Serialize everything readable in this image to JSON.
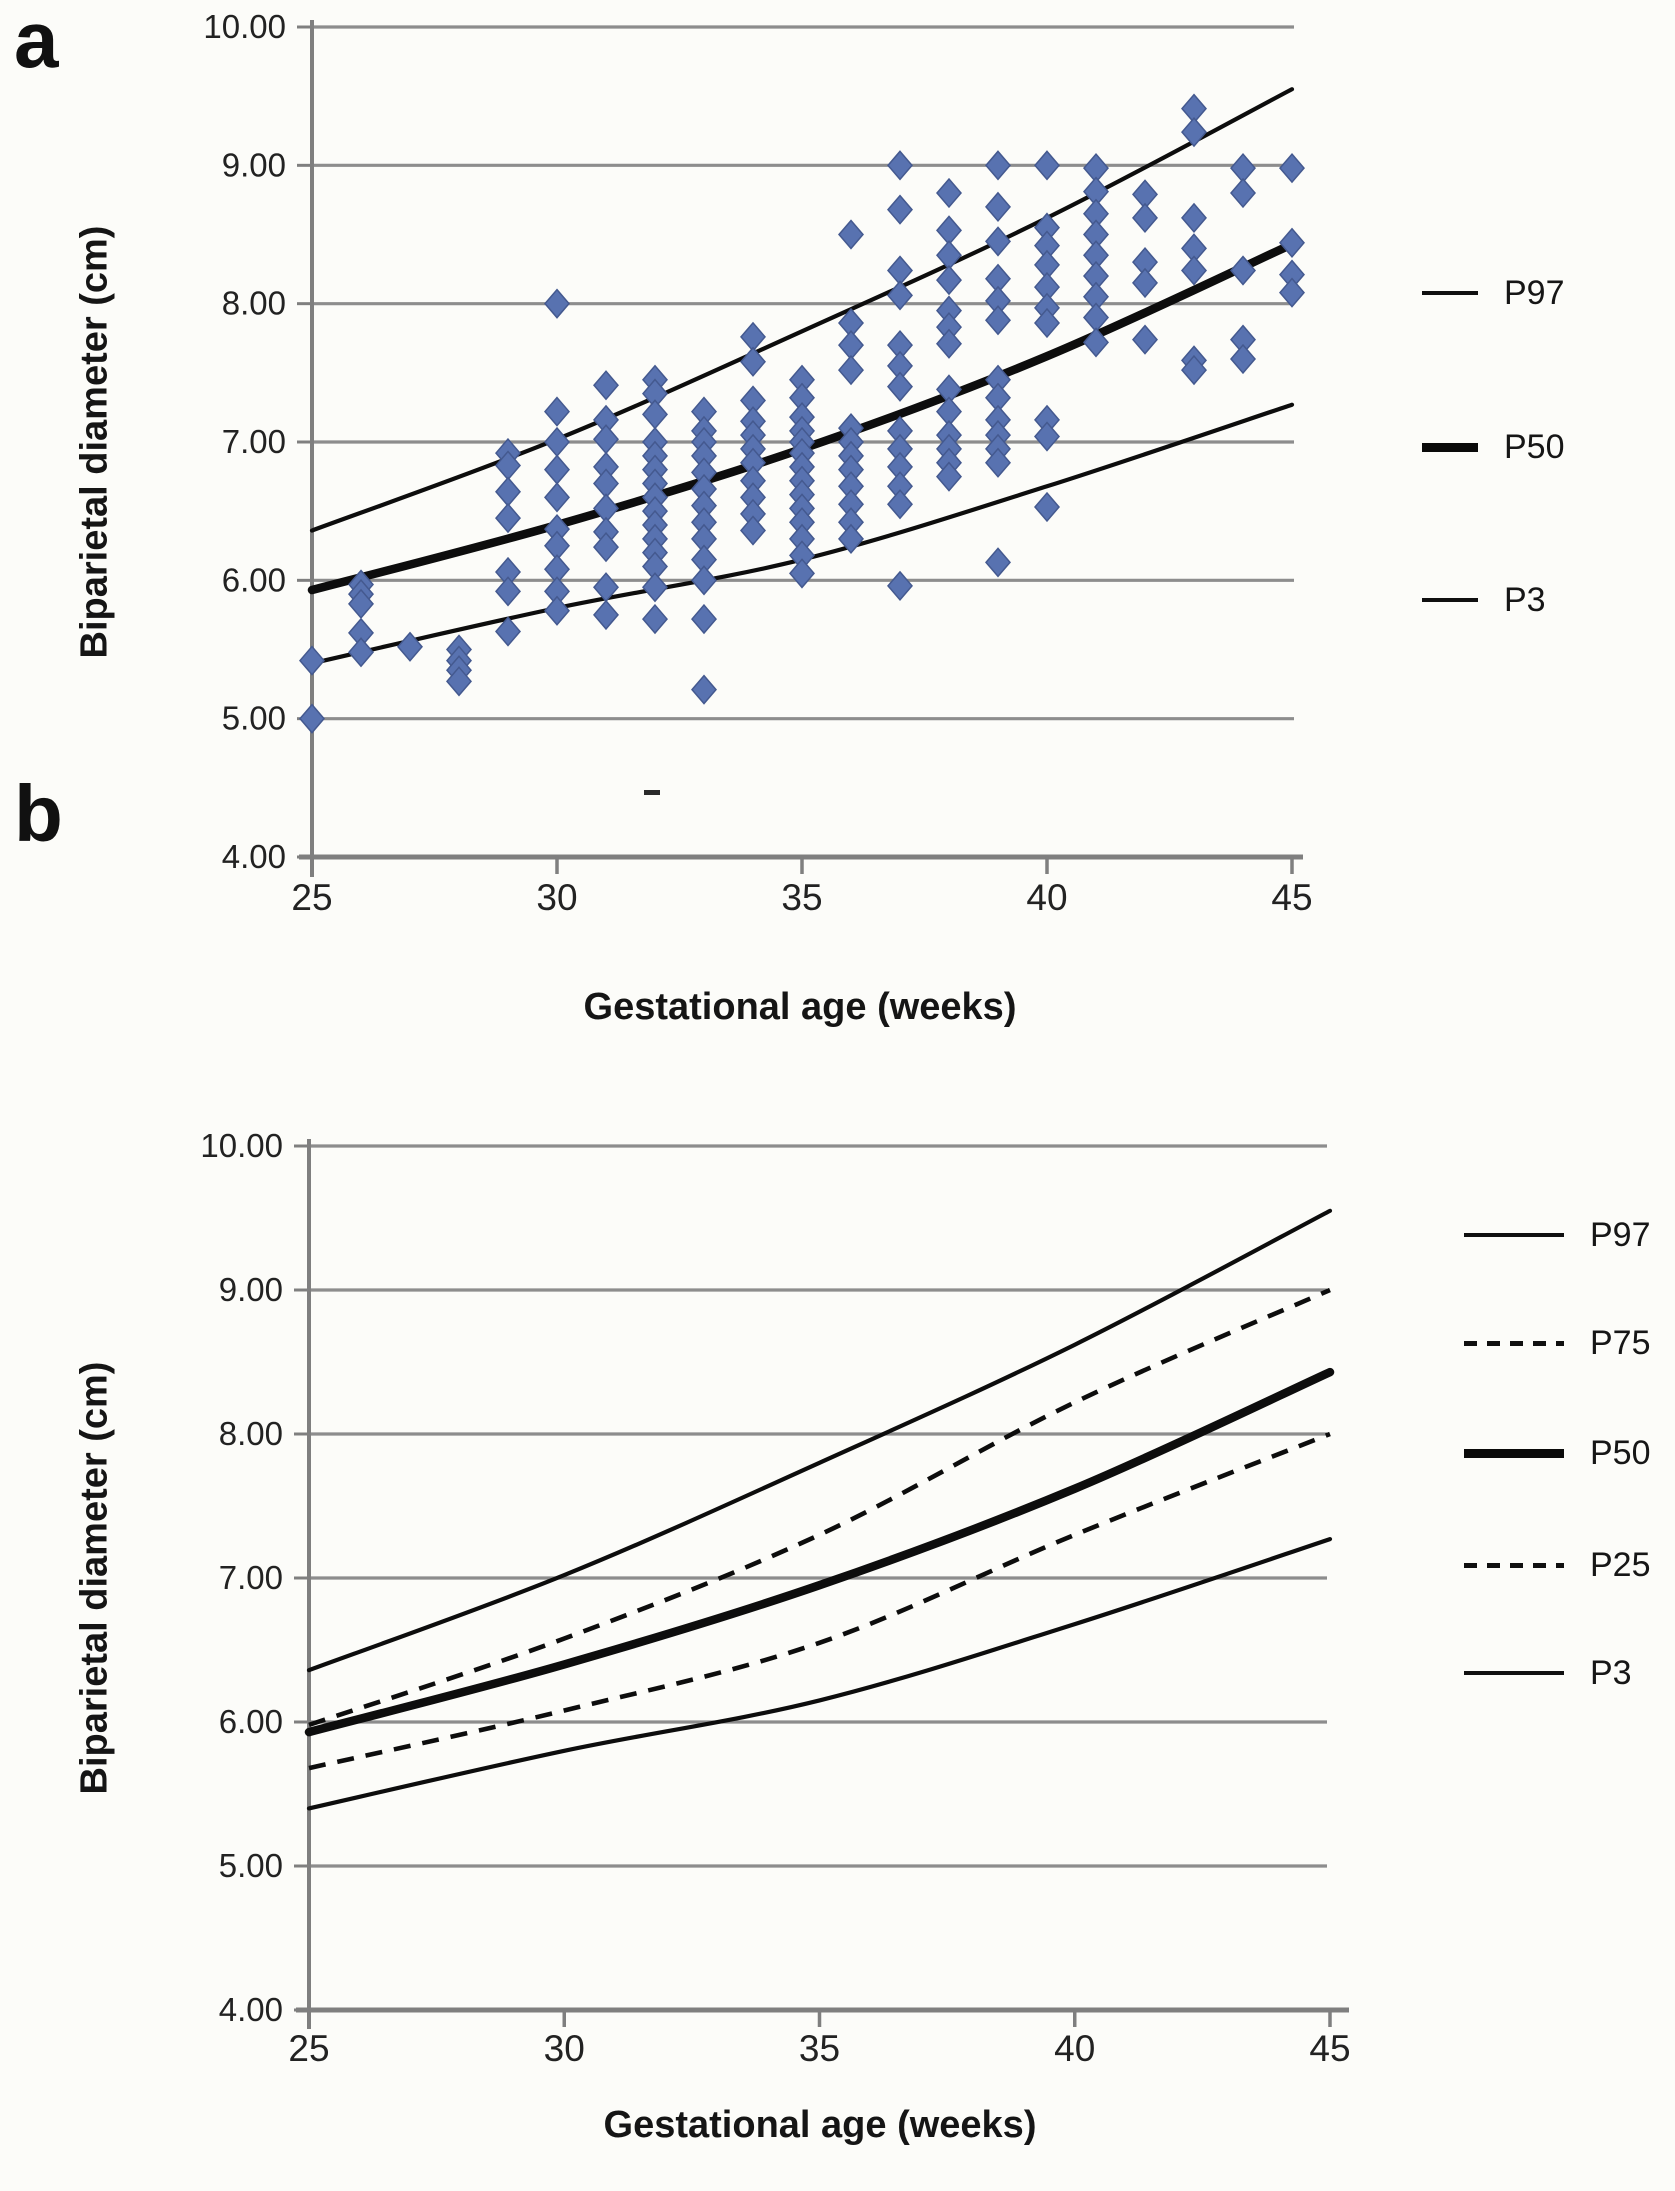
{
  "chart_data": [
    {
      "panel_letter": "a",
      "type": "scatter",
      "xlabel": "Gestational age (weeks)",
      "ylabel": "Biparietal diameter (cm)",
      "xlim": [
        25,
        45
      ],
      "ylim": [
        4,
        10
      ],
      "xticks": [
        25,
        30,
        35,
        40,
        45
      ],
      "yticks": [
        10,
        9,
        8,
        7,
        6,
        5,
        4
      ],
      "ytick_labels": [
        "10.00",
        "9.00",
        "8.00",
        "7.00",
        "6.00",
        "5.00",
        "4.00"
      ],
      "grid": "horizontal",
      "legend_position": "right",
      "curve_color": "#0d0d0d",
      "curve_x": [
        25,
        30,
        35,
        40,
        45
      ],
      "series": [
        {
          "name": "P97",
          "style": "thin-solid",
          "values": [
            6.36,
            7.02,
            7.8,
            8.62,
            9.55
          ]
        },
        {
          "name": "P50",
          "style": "thick-solid",
          "values": [
            5.93,
            6.4,
            6.95,
            7.62,
            8.43
          ]
        },
        {
          "name": "P3",
          "style": "thin-solid",
          "values": [
            5.4,
            5.8,
            6.15,
            6.68,
            7.27
          ]
        }
      ],
      "scatter": {
        "marker": "diamond",
        "color": "#5872b0",
        "edge_color": "#44598f",
        "points": [
          [
            25,
            5.42
          ],
          [
            25,
            5.0
          ],
          [
            26,
            5.97
          ],
          [
            26,
            5.9
          ],
          [
            26,
            5.83
          ],
          [
            26,
            5.62
          ],
          [
            26,
            5.48
          ],
          [
            27,
            5.52
          ],
          [
            28,
            5.5
          ],
          [
            28,
            5.42
          ],
          [
            28,
            5.35
          ],
          [
            28,
            5.27
          ],
          [
            29,
            6.92
          ],
          [
            29,
            6.83
          ],
          [
            29,
            6.64
          ],
          [
            29,
            6.45
          ],
          [
            29,
            6.06
          ],
          [
            29,
            5.92
          ],
          [
            29,
            5.63
          ],
          [
            30,
            8.0
          ],
          [
            30,
            7.22
          ],
          [
            30,
            7.0
          ],
          [
            30,
            6.8
          ],
          [
            30,
            6.6
          ],
          [
            30,
            6.37
          ],
          [
            30,
            6.25
          ],
          [
            30,
            6.08
          ],
          [
            30,
            5.92
          ],
          [
            30,
            5.78
          ],
          [
            31,
            7.41
          ],
          [
            31,
            7.16
          ],
          [
            31,
            7.02
          ],
          [
            31,
            6.82
          ],
          [
            31,
            6.7
          ],
          [
            31,
            6.52
          ],
          [
            31,
            6.35
          ],
          [
            31,
            6.24
          ],
          [
            31,
            5.95
          ],
          [
            31,
            5.75
          ],
          [
            32,
            7.45
          ],
          [
            32,
            7.35
          ],
          [
            32,
            7.2
          ],
          [
            32,
            7.0
          ],
          [
            32,
            6.9
          ],
          [
            32,
            6.8
          ],
          [
            32,
            6.7
          ],
          [
            32,
            6.6
          ],
          [
            32,
            6.5
          ],
          [
            32,
            6.4
          ],
          [
            32,
            6.3
          ],
          [
            32,
            6.2
          ],
          [
            32,
            6.1
          ],
          [
            32,
            5.95
          ],
          [
            32,
            5.72
          ],
          [
            33,
            7.22
          ],
          [
            33,
            7.08
          ],
          [
            33,
            7.0
          ],
          [
            33,
            6.9
          ],
          [
            33,
            6.78
          ],
          [
            33,
            6.66
          ],
          [
            33,
            6.54
          ],
          [
            33,
            6.42
          ],
          [
            33,
            6.3
          ],
          [
            33,
            6.15
          ],
          [
            33,
            6.0
          ],
          [
            33,
            5.72
          ],
          [
            33,
            5.21
          ],
          [
            34,
            7.76
          ],
          [
            34,
            7.58
          ],
          [
            34,
            7.3
          ],
          [
            34,
            7.15
          ],
          [
            34,
            7.05
          ],
          [
            34,
            6.95
          ],
          [
            34,
            6.85
          ],
          [
            34,
            6.72
          ],
          [
            34,
            6.6
          ],
          [
            34,
            6.48
          ],
          [
            34,
            6.36
          ],
          [
            35,
            7.45
          ],
          [
            35,
            7.32
          ],
          [
            35,
            7.18
          ],
          [
            35,
            7.08
          ],
          [
            35,
            7.0
          ],
          [
            35,
            6.92
          ],
          [
            35,
            6.82
          ],
          [
            35,
            6.72
          ],
          [
            35,
            6.62
          ],
          [
            35,
            6.52
          ],
          [
            35,
            6.42
          ],
          [
            35,
            6.3
          ],
          [
            35,
            6.18
          ],
          [
            35,
            6.05
          ],
          [
            36,
            8.5
          ],
          [
            36,
            7.86
          ],
          [
            36,
            7.7
          ],
          [
            36,
            7.52
          ],
          [
            36,
            7.1
          ],
          [
            36,
            7.0
          ],
          [
            36,
            6.9
          ],
          [
            36,
            6.8
          ],
          [
            36,
            6.68
          ],
          [
            36,
            6.55
          ],
          [
            36,
            6.42
          ],
          [
            36,
            6.3
          ],
          [
            37,
            9.0
          ],
          [
            37,
            8.68
          ],
          [
            37,
            8.24
          ],
          [
            37,
            8.06
          ],
          [
            37,
            7.7
          ],
          [
            37,
            7.55
          ],
          [
            37,
            7.4
          ],
          [
            37,
            7.08
          ],
          [
            37,
            6.95
          ],
          [
            37,
            6.82
          ],
          [
            37,
            6.68
          ],
          [
            37,
            6.55
          ],
          [
            37,
            5.96
          ],
          [
            38,
            8.8
          ],
          [
            38,
            8.53
          ],
          [
            38,
            8.35
          ],
          [
            38,
            8.17
          ],
          [
            38,
            7.95
          ],
          [
            38,
            7.83
          ],
          [
            38,
            7.71
          ],
          [
            38,
            7.38
          ],
          [
            38,
            7.22
          ],
          [
            38,
            7.05
          ],
          [
            38,
            6.95
          ],
          [
            38,
            6.85
          ],
          [
            38,
            6.75
          ],
          [
            39,
            9.0
          ],
          [
            39,
            8.7
          ],
          [
            39,
            8.45
          ],
          [
            39,
            8.18
          ],
          [
            39,
            8.02
          ],
          [
            39,
            7.88
          ],
          [
            39,
            7.45
          ],
          [
            39,
            7.32
          ],
          [
            39,
            7.16
          ],
          [
            39,
            7.05
          ],
          [
            39,
            6.95
          ],
          [
            39,
            6.85
          ],
          [
            39,
            6.13
          ],
          [
            40,
            9.0
          ],
          [
            40,
            8.55
          ],
          [
            40,
            8.42
          ],
          [
            40,
            8.28
          ],
          [
            40,
            8.12
          ],
          [
            40,
            7.97
          ],
          [
            40,
            7.86
          ],
          [
            40,
            7.16
          ],
          [
            40,
            7.04
          ],
          [
            40,
            6.53
          ],
          [
            41,
            8.98
          ],
          [
            41,
            8.81
          ],
          [
            41,
            8.65
          ],
          [
            41,
            8.5
          ],
          [
            41,
            8.35
          ],
          [
            41,
            8.2
          ],
          [
            41,
            8.05
          ],
          [
            41,
            7.9
          ],
          [
            41,
            7.72
          ],
          [
            42,
            8.79
          ],
          [
            42,
            8.62
          ],
          [
            42,
            8.3
          ],
          [
            42,
            8.15
          ],
          [
            42,
            7.74
          ],
          [
            43,
            9.41
          ],
          [
            43,
            9.24
          ],
          [
            43,
            8.62
          ],
          [
            43,
            8.4
          ],
          [
            43,
            8.24
          ],
          [
            43,
            7.59
          ],
          [
            43,
            7.52
          ],
          [
            44,
            8.98
          ],
          [
            44,
            8.8
          ],
          [
            44,
            8.24
          ],
          [
            44,
            7.74
          ],
          [
            44,
            7.6
          ],
          [
            45,
            8.98
          ],
          [
            45,
            8.44
          ],
          [
            45,
            8.21
          ],
          [
            45,
            8.08
          ]
        ]
      }
    },
    {
      "panel_letter": "b",
      "type": "line",
      "xlabel": "Gestational age (weeks)",
      "ylabel": "Biparietal diameter (cm)",
      "xlim": [
        25,
        45
      ],
      "ylim": [
        4,
        10
      ],
      "xticks": [
        25,
        30,
        35,
        40,
        45
      ],
      "yticks": [
        10,
        9,
        8,
        7,
        6,
        5,
        4
      ],
      "ytick_labels": [
        "10.00",
        "9.00",
        "8.00",
        "7.00",
        "6.00",
        "5.00",
        "4.00"
      ],
      "grid": "horizontal",
      "legend_position": "right",
      "curve_color": "#0d0d0d",
      "curve_x": [
        25,
        30,
        35,
        40,
        45
      ],
      "series": [
        {
          "name": "P97",
          "style": "thin-solid",
          "values": [
            6.36,
            7.02,
            7.8,
            8.62,
            9.55
          ]
        },
        {
          "name": "P75",
          "style": "dashed",
          "values": [
            5.98,
            6.58,
            7.3,
            8.22,
            9.0
          ]
        },
        {
          "name": "P50",
          "style": "thick-solid",
          "values": [
            5.93,
            6.4,
            6.95,
            7.62,
            8.43
          ]
        },
        {
          "name": "P25",
          "style": "dashed",
          "values": [
            5.68,
            6.08,
            6.55,
            7.3,
            8.0
          ]
        },
        {
          "name": "P3",
          "style": "thin-solid",
          "values": [
            5.4,
            5.8,
            6.15,
            6.68,
            7.27
          ]
        }
      ]
    }
  ]
}
